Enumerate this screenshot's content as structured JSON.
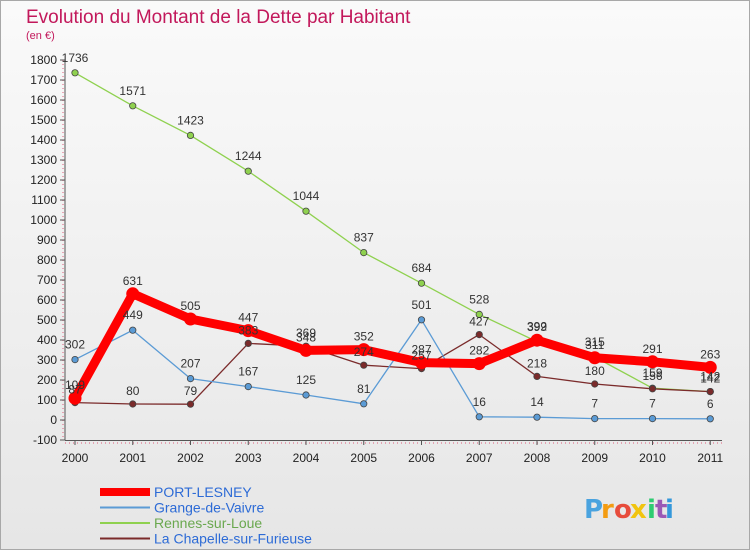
{
  "chart_data": {
    "type": "line",
    "title": "Evolution du Montant de la Dette par Habitant",
    "subtitle": "(en €)",
    "x": [
      "2000",
      "2001",
      "2002",
      "2003",
      "2004",
      "2005",
      "2006",
      "2007",
      "2008",
      "2009",
      "2010",
      "2011"
    ],
    "ylim": [
      -100,
      1800
    ],
    "yticks": [
      "-100",
      "0",
      "100",
      "200",
      "300",
      "400",
      "500",
      "600",
      "700",
      "800",
      "900",
      "1000",
      "1100",
      "1200",
      "1300",
      "1400",
      "1500",
      "1600",
      "1700",
      "1800"
    ],
    "grid": false,
    "legend_position": "bottom-left",
    "series": [
      {
        "name": "Rennes-sur-Loue",
        "color": "#8fd14f",
        "values": [
          1736,
          1571,
          1423,
          1244,
          1044,
          837,
          684,
          528,
          392,
          315,
          159,
          142
        ]
      },
      {
        "name": "La Chapelle-sur-Furieuse",
        "color": "#7b2b2b",
        "values": [
          87,
          80,
          79,
          383,
          369,
          274,
          257,
          427,
          218,
          180,
          156,
          142
        ]
      },
      {
        "name": "Grange-de-Vaivre",
        "color": "#5b9bd5",
        "values": [
          302,
          449,
          207,
          167,
          125,
          81,
          501,
          16,
          14,
          7,
          7,
          6
        ]
      },
      {
        "name": "PORT-LESNEY",
        "color": "#ff0000",
        "values": [
          109,
          631,
          505,
          447,
          348,
          352,
          287,
          282,
          399,
          311,
          291,
          263
        ]
      }
    ]
  },
  "logo": {
    "text": "Proxiti"
  }
}
